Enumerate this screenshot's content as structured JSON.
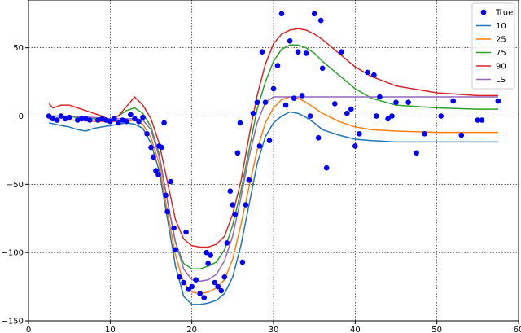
{
  "chart_data": {
    "type": "line",
    "title": "",
    "xlabel": "",
    "ylabel": "",
    "xlim": [
      0,
      60
    ],
    "ylim": [
      -150,
      85
    ],
    "xticks": [
      0,
      10,
      20,
      30,
      40,
      50,
      60
    ],
    "yticks": [
      -150,
      -100,
      -50,
      0,
      50
    ],
    "grid": true,
    "grid_style": "dotted",
    "legend_position": "top-right",
    "scatter": {
      "name": "True",
      "color": "#0000ff",
      "points": [
        [
          2.5,
          0
        ],
        [
          3.0,
          -2
        ],
        [
          3.5,
          -3
        ],
        [
          4.0,
          0
        ],
        [
          4.5,
          -2
        ],
        [
          5.0,
          -1
        ],
        [
          6.0,
          -3
        ],
        [
          6.5,
          -2
        ],
        [
          7.0,
          -2
        ],
        [
          7.5,
          -3
        ],
        [
          8.5,
          -3
        ],
        [
          9.0,
          -2
        ],
        [
          9.5,
          -3
        ],
        [
          10.0,
          -4
        ],
        [
          10.5,
          -2
        ],
        [
          11.0,
          -5
        ],
        [
          11.5,
          -3
        ],
        [
          12.0,
          -4
        ],
        [
          12.5,
          1
        ],
        [
          13.0,
          -2
        ],
        [
          13.5,
          -4
        ],
        [
          14.0,
          -1
        ],
        [
          14.5,
          -13
        ],
        [
          15.0,
          -23
        ],
        [
          15.3,
          -30
        ],
        [
          15.6,
          -40
        ],
        [
          15.9,
          -43
        ],
        [
          16.0,
          -22
        ],
        [
          16.3,
          -23
        ],
        [
          16.6,
          -5
        ],
        [
          16.8,
          -58
        ],
        [
          17.0,
          -70
        ],
        [
          17.4,
          -48
        ],
        [
          17.8,
          -82
        ],
        [
          18.0,
          -98
        ],
        [
          18.5,
          -118
        ],
        [
          19.0,
          -122
        ],
        [
          19.3,
          -85
        ],
        [
          19.6,
          -127
        ],
        [
          20.0,
          -125
        ],
        [
          20.5,
          -120
        ],
        [
          21.0,
          -130
        ],
        [
          21.5,
          -133
        ],
        [
          21.8,
          -100
        ],
        [
          22.0,
          -108
        ],
        [
          22.3,
          -102
        ],
        [
          22.8,
          -122
        ],
        [
          23.2,
          -125
        ],
        [
          23.6,
          -128
        ],
        [
          24.0,
          -118
        ],
        [
          24.3,
          -93
        ],
        [
          24.7,
          -55
        ],
        [
          25.0,
          -65
        ],
        [
          25.3,
          -72
        ],
        [
          25.6,
          -27
        ],
        [
          25.9,
          -5
        ],
        [
          26.2,
          -107
        ],
        [
          26.6,
          -65
        ],
        [
          27.0,
          -47
        ],
        [
          27.5,
          2
        ],
        [
          28.0,
          10
        ],
        [
          28.3,
          -22
        ],
        [
          28.6,
          47
        ],
        [
          29.0,
          10
        ],
        [
          29.5,
          -18
        ],
        [
          30.0,
          20
        ],
        [
          30.5,
          37
        ],
        [
          31.0,
          75
        ],
        [
          31.5,
          8
        ],
        [
          32.0,
          55
        ],
        [
          32.5,
          13
        ],
        [
          33.0,
          47
        ],
        [
          33.5,
          15
        ],
        [
          34.0,
          46
        ],
        [
          34.5,
          0
        ],
        [
          35.0,
          75
        ],
        [
          35.5,
          -16
        ],
        [
          35.8,
          70
        ],
        [
          36.0,
          35
        ],
        [
          36.5,
          -38
        ],
        [
          37.5,
          9
        ],
        [
          38.3,
          47
        ],
        [
          39.0,
          2
        ],
        [
          39.5,
          5
        ],
        [
          40.0,
          -22
        ],
        [
          40.5,
          -13
        ],
        [
          41.5,
          32
        ],
        [
          42.3,
          30
        ],
        [
          42.6,
          0
        ],
        [
          43.0,
          14
        ],
        [
          44.0,
          -2
        ],
        [
          44.5,
          0
        ],
        [
          45.0,
          10
        ],
        [
          46.5,
          10
        ],
        [
          47.5,
          -27
        ],
        [
          48.5,
          -13
        ],
        [
          50.5,
          0
        ],
        [
          52.0,
          11
        ],
        [
          53.0,
          -14
        ],
        [
          55.0,
          -3
        ],
        [
          55.5,
          -3
        ],
        [
          57.5,
          11
        ]
      ]
    },
    "series": [
      {
        "name": "10",
        "color": "#1f77b4",
        "x": [
          2.5,
          4,
          5,
          6,
          7,
          8,
          9,
          10,
          11,
          12,
          13,
          14,
          15,
          16,
          17,
          18,
          19,
          20,
          21,
          22,
          23,
          24,
          25,
          26,
          27,
          28,
          29,
          30,
          31,
          32,
          33,
          34,
          35,
          36,
          38,
          40,
          42,
          45,
          50,
          55,
          57.5
        ],
        "values": [
          -5,
          -7,
          -8,
          -10,
          -11,
          -9,
          -8,
          -7,
          -6,
          -5,
          -6,
          -9,
          -20,
          -40,
          -75,
          -110,
          -132,
          -138,
          -138,
          -137,
          -135,
          -130,
          -118,
          -95,
          -65,
          -35,
          -15,
          -5,
          0,
          3,
          2,
          -1,
          -5,
          -10,
          -14,
          -17,
          -18,
          -19,
          -19,
          -19,
          -19
        ]
      },
      {
        "name": "25",
        "color": "#ff7f0e",
        "x": [
          2.5,
          4,
          6,
          8,
          10,
          12,
          13,
          14,
          15,
          16,
          17,
          18,
          19,
          20,
          21,
          22,
          23,
          24,
          25,
          26,
          27,
          28,
          29,
          30,
          31,
          32,
          33,
          34,
          35,
          36,
          38,
          40,
          42,
          45,
          50,
          55,
          57.5
        ],
        "values": [
          -2,
          -3,
          -3,
          -4,
          -4,
          -4,
          -3,
          -6,
          -16,
          -35,
          -70,
          -102,
          -122,
          -129,
          -130,
          -129,
          -126,
          -120,
          -105,
          -80,
          -52,
          -25,
          -5,
          6,
          12,
          14,
          13,
          10,
          6,
          2,
          -4,
          -8,
          -10,
          -11,
          -12,
          -12,
          -12
        ]
      },
      {
        "name": "75",
        "color": "#2ca02c",
        "x": [
          2.5,
          4,
          6,
          8,
          10,
          11,
          12,
          13,
          14,
          15,
          16,
          17,
          18,
          19,
          20,
          21,
          22,
          23,
          24,
          25,
          26,
          27,
          28,
          29,
          30,
          31,
          32,
          33,
          34,
          35,
          36,
          38,
          40,
          42,
          45,
          50,
          55,
          57.5
        ],
        "values": [
          0,
          0,
          -1,
          -2,
          -2,
          0,
          4,
          6,
          2,
          -8,
          -28,
          -62,
          -93,
          -108,
          -112,
          -112,
          -110,
          -107,
          -98,
          -80,
          -55,
          -25,
          5,
          25,
          40,
          49,
          52,
          52,
          50,
          46,
          40,
          30,
          20,
          13,
          8,
          6,
          5,
          5
        ]
      },
      {
        "name": "90",
        "color": "#d62728",
        "x": [
          2.5,
          3,
          4,
          5,
          6,
          7,
          8,
          9,
          10,
          11,
          12,
          13,
          14,
          15,
          16,
          17,
          18,
          19,
          20,
          21,
          22,
          23,
          24,
          25,
          26,
          27,
          28,
          29,
          30,
          31,
          32,
          33,
          34,
          35,
          36,
          38,
          40,
          42,
          45,
          50,
          55,
          57.5
        ],
        "values": [
          9,
          6,
          8,
          8,
          6,
          4,
          2,
          0,
          -3,
          0,
          7,
          14,
          8,
          -2,
          -20,
          -48,
          -76,
          -90,
          -95,
          -96,
          -96,
          -94,
          -88,
          -72,
          -48,
          -15,
          15,
          38,
          53,
          60,
          63,
          64,
          63,
          60,
          56,
          46,
          36,
          29,
          22,
          17,
          15,
          15
        ]
      },
      {
        "name": "LS",
        "color": "#9467bd",
        "x": [
          2.5,
          5,
          8,
          10,
          12,
          13,
          14,
          15,
          16,
          17,
          18,
          19,
          20,
          21,
          22,
          23,
          24,
          25,
          26,
          27,
          28,
          29,
          30,
          35,
          40,
          45,
          50,
          55,
          57.5
        ],
        "values": [
          0,
          0,
          -1,
          -2,
          -2,
          -2,
          -3,
          -10,
          -30,
          -62,
          -92,
          -112,
          -120,
          -121,
          -120,
          -116,
          -106,
          -88,
          -60,
          -30,
          -5,
          10,
          14,
          14,
          14,
          14,
          14,
          14,
          14
        ]
      }
    ]
  }
}
